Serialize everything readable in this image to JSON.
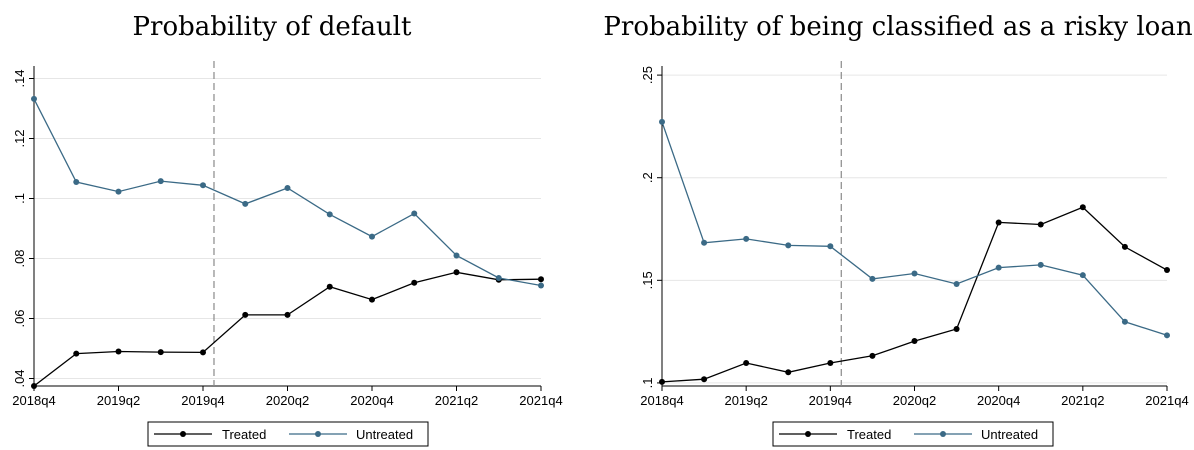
{
  "colors": {
    "treated": "#000000",
    "untreated": "#3b6a86",
    "grid": "#e6e6e6",
    "vline": "#8a8a8a"
  },
  "chart_data": [
    {
      "type": "line",
      "title": "Probability of default",
      "xlabel": "",
      "ylabel": "",
      "x": [
        "2018q4",
        "2019q1",
        "2019q2",
        "2019q3",
        "2019q4",
        "2020q1",
        "2020q2",
        "2020q3",
        "2020q4",
        "2021q1",
        "2021q2",
        "2021q3",
        "2021q4"
      ],
      "x_ticks": [
        "2018q4",
        "2019q2",
        "2019q4",
        "2020q2",
        "2020q4",
        "2021q2",
        "2021q4"
      ],
      "y_ticks": [
        ".04",
        ".06",
        ".08",
        ".1",
        ".12",
        ".14"
      ],
      "y_tick_values": [
        0.04,
        0.06,
        0.08,
        0.1,
        0.12,
        0.14
      ],
      "ylim": [
        0.0375,
        0.1425
      ],
      "vline_at": "2019q4",
      "grid": true,
      "legend_position": "bottom",
      "series": [
        {
          "name": "Treated",
          "color_key": "treated",
          "values": [
            0.0375,
            0.0483,
            0.049,
            0.0488,
            0.0487,
            0.0612,
            0.0612,
            0.0706,
            0.0663,
            0.0719,
            0.0754,
            0.0729,
            0.0731
          ]
        },
        {
          "name": "Untreated",
          "color_key": "untreated",
          "values": [
            0.1332,
            0.1055,
            0.1023,
            0.1058,
            0.1044,
            0.0982,
            0.1035,
            0.0947,
            0.0873,
            0.095,
            0.081,
            0.0735,
            0.071
          ]
        }
      ]
    },
    {
      "type": "line",
      "title": "Probability of being classified as a risky loan",
      "xlabel": "",
      "ylabel": "",
      "x": [
        "2018q4",
        "2019q1",
        "2019q2",
        "2019q3",
        "2019q4",
        "2020q1",
        "2020q2",
        "2020q3",
        "2020q4",
        "2021q1",
        "2021q2",
        "2021q3",
        "2021q4"
      ],
      "x_ticks": [
        "2018q4",
        "2019q2",
        "2019q4",
        "2020q2",
        "2020q4",
        "2021q2",
        "2021q4"
      ],
      "y_ticks": [
        ".1",
        ".15",
        ".2",
        ".25"
      ],
      "y_tick_values": [
        0.1,
        0.15,
        0.2,
        0.25
      ],
      "ylim": [
        0.0985,
        0.252
      ],
      "vline_at": "2019q4",
      "grid": true,
      "legend_position": "bottom",
      "series": [
        {
          "name": "Treated",
          "color_key": "treated",
          "values": [
            0.1005,
            0.1018,
            0.1097,
            0.1052,
            0.1097,
            0.1132,
            0.1204,
            0.1263,
            0.1782,
            0.1772,
            0.1856,
            0.1663,
            0.155
          ]
        },
        {
          "name": "Untreated",
          "color_key": "untreated",
          "values": [
            0.2272,
            0.1683,
            0.1702,
            0.167,
            0.1666,
            0.1507,
            0.1533,
            0.1482,
            0.1562,
            0.1575,
            0.1525,
            0.1298,
            0.1232
          ]
        }
      ]
    }
  ]
}
